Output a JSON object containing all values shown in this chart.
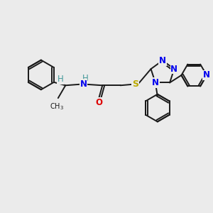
{
  "bg_color": "#ebebeb",
  "bond_color": "#1a1a1a",
  "bond_width": 1.4,
  "figsize": [
    3.0,
    3.0
  ],
  "dpi": 100,
  "N_col": "#0000ee",
  "O_col": "#dd0000",
  "S_col": "#bbaa00",
  "H_col": "#449999",
  "font_size": 8.5,
  "font_size_small": 7.0,
  "xlim": [
    0,
    10
  ],
  "ylim": [
    0,
    10
  ]
}
